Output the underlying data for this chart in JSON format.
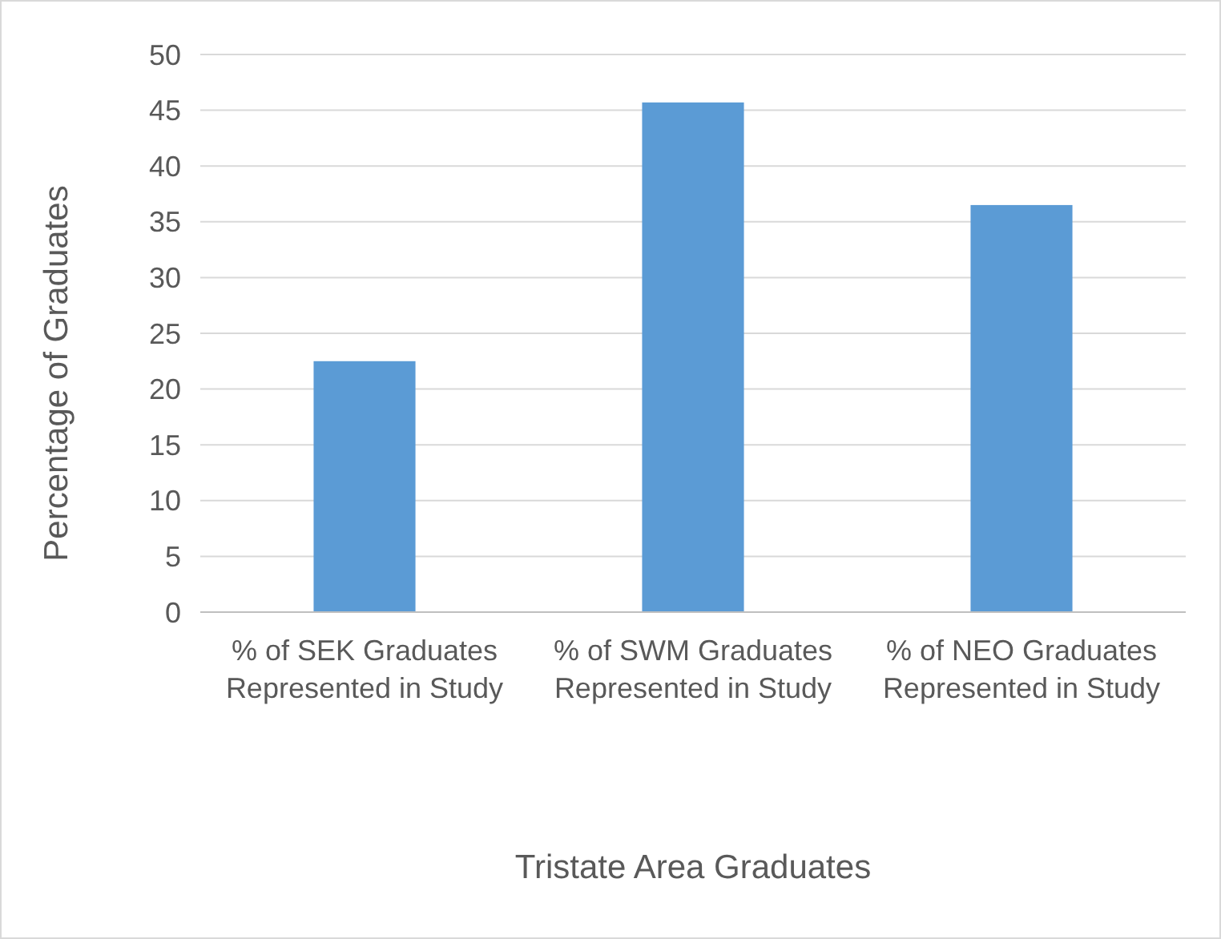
{
  "chart_data": {
    "type": "bar",
    "xlabel": "Tristate Area Graduates",
    "ylabel": "Percentage of Graduates",
    "categories": [
      "% of SEK Graduates Represented in Study",
      "% of SWM Graduates Represented in Study",
      "% of NEO Graduates Represented in Study"
    ],
    "values": [
      22.5,
      45.7,
      36.5
    ],
    "color": "#5b9bd5",
    "ylim": [
      0,
      50
    ],
    "yticks": [
      0,
      5,
      10,
      15,
      20,
      25,
      30,
      35,
      40,
      45,
      50
    ],
    "grid": "y"
  }
}
